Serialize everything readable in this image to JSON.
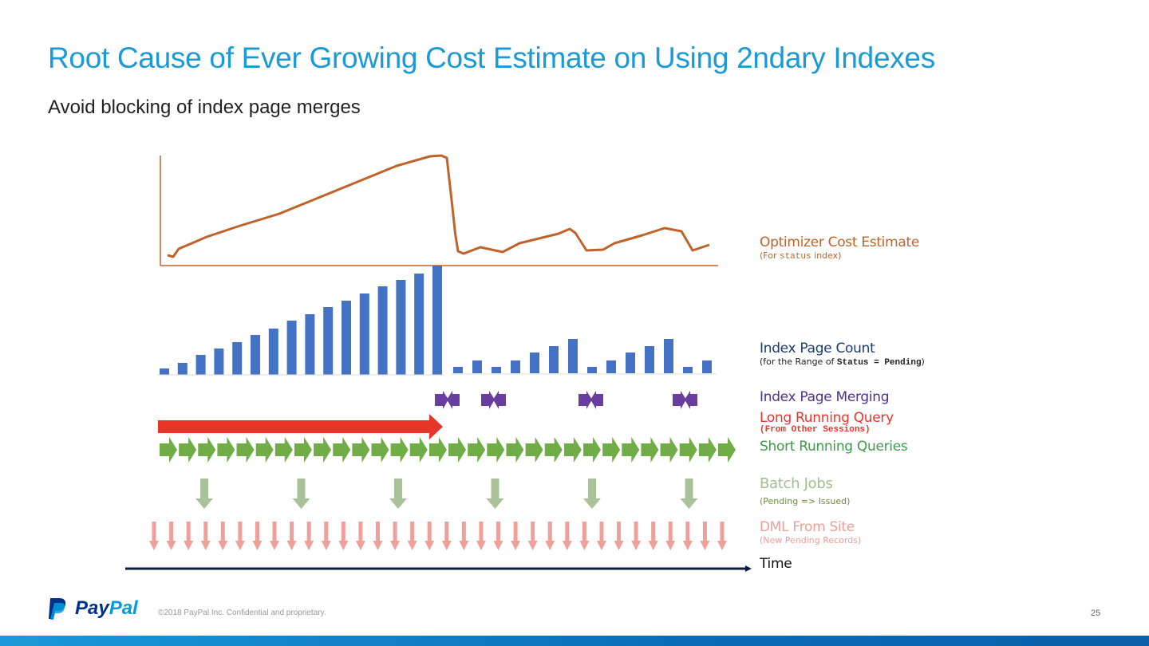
{
  "title": "Root Cause of Ever Growing Cost Estimate on Using 2ndary Indexes",
  "subtitle": "Avoid blocking of index page merges",
  "legend": {
    "cost_main": "Optimizer Cost Estimate",
    "cost_sub_pre": "(For ",
    "cost_sub_code": "status",
    "cost_sub_post": " index)",
    "pages_main": "Index Page Count",
    "pages_sub_pre": "(for the Range of ",
    "pages_sub_code": "Status = Pending",
    "pages_sub_post": ")",
    "merging": "Index Page Merging",
    "long_query": "Long Running Query",
    "long_query_sub": "(From Other Sessions)",
    "short_queries": "Short Running Queries",
    "batch_main": "Batch Jobs",
    "batch_sub": "(Pending => Issued)",
    "dml_main": "DML From Site",
    "dml_sub": "(New Pending Records)",
    "time": "Time"
  },
  "colors": {
    "title": "#1a9ad6",
    "cost": "#c0622b",
    "bars": "#4472c4",
    "merge": "#6a3ea1",
    "long": "#e8352a",
    "short": "#70ad47",
    "batch": "#a9c29a",
    "dml": "#f0a09a",
    "time": "#0d1b3e"
  },
  "chart_data": {
    "type": "bar+line",
    "cost_line": {
      "name": "Optimizer Cost Estimate",
      "x": [
        0,
        1,
        2,
        7,
        13,
        20,
        27,
        34,
        41,
        47,
        49,
        50,
        51,
        51.5,
        52,
        53,
        56,
        60,
        63,
        70,
        72,
        73,
        75,
        78,
        80,
        85,
        89,
        92,
        94,
        97
      ],
      "y": [
        13,
        11,
        21,
        36,
        50,
        65,
        85,
        105,
        125,
        137,
        138,
        135,
        73,
        40,
        18,
        15,
        23,
        17,
        28,
        40,
        46,
        41,
        19,
        20,
        28,
        38,
        47,
        43,
        19,
        26
      ]
    },
    "index_page_count": {
      "name": "Index Page Count",
      "group1": [
        8,
        15,
        25,
        33,
        41,
        50,
        58,
        68,
        76,
        85,
        93,
        102,
        111,
        119,
        127,
        137
      ],
      "group2": [
        8,
        16,
        8,
        16,
        26,
        34,
        43,
        8,
        16,
        26,
        34,
        43,
        8,
        16
      ]
    },
    "merge_after_group2_bar": [
      0,
      2,
      7,
      12
    ],
    "long_query_span_end_bar": 15,
    "short_query_count": 30,
    "batch_job_count": 6,
    "dml_count": 34
  }
}
